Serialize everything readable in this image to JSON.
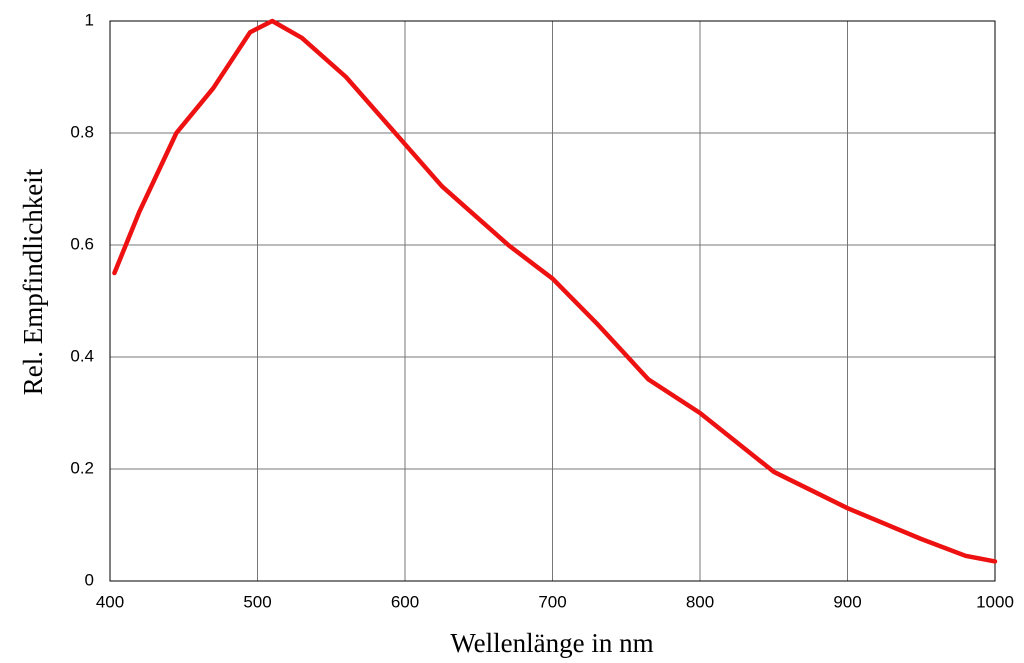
{
  "chart_data": {
    "type": "line",
    "x_label": "Wellenlänge in nm",
    "y_label": "Rel. Empfindlichkeit",
    "series": [
      {
        "name": "Rel. Empfindlichkeit",
        "color": "#ee1111",
        "x": [
          403,
          420,
          445,
          470,
          495,
          510,
          530,
          560,
          600,
          625,
          640,
          670,
          690,
          700,
          730,
          765,
          800,
          850,
          900,
          950,
          980,
          1000
        ],
        "values": [
          0.55,
          0.66,
          0.8,
          0.88,
          0.98,
          1.0,
          0.97,
          0.9,
          0.78,
          0.705,
          0.67,
          0.6,
          0.56,
          0.54,
          0.46,
          0.36,
          0.3,
          0.195,
          0.13,
          0.075,
          0.045,
          0.035
        ]
      }
    ],
    "xlim": [
      400,
      1000
    ],
    "xticks": [
      400,
      500,
      600,
      700,
      800,
      900,
      1000
    ],
    "ylim": [
      0,
      1
    ],
    "yticks": [
      0,
      0.2,
      0.4,
      0.6,
      0.8,
      1
    ],
    "grid": true
  }
}
